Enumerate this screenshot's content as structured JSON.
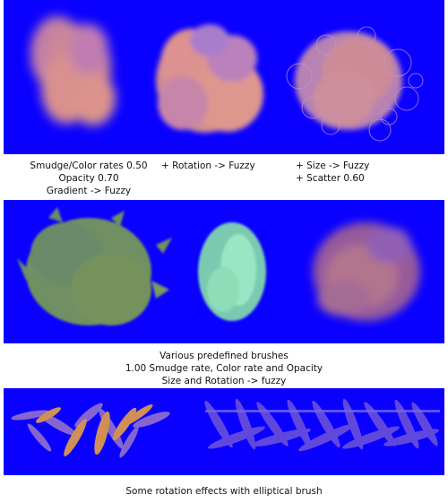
{
  "captions": {
    "smudge": [
      "Smudge/Color rates 0.50",
      "Opacity 0.70",
      "Gradient -> Fuzzy"
    ],
    "rotation": [
      "+ Rotation -> Fuzzy"
    ],
    "size_scatter": [
      "+ Size -> Fuzzy",
      "+ Scatter 0.60"
    ],
    "predefined": [
      "Various predefined brushes",
      "1.00 Smudge rate, Color rate and Opacity",
      "Size and Rotation -> fuzzy"
    ],
    "elliptical": [
      "Some rotation effects with elliptical brush"
    ]
  },
  "colors": {
    "panel_background": "#0a00ff",
    "stroke_peach": "#f0a08a",
    "stroke_olive": "#6f8f62",
    "stroke_mint": "#8fe0b8",
    "stroke_orange": "#f2a93a",
    "stroke_violet": "#9b78c8"
  }
}
